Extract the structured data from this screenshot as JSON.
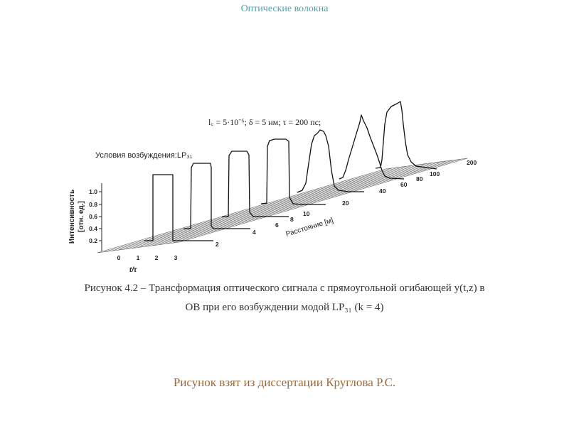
{
  "slide": {
    "title": "Оптические волокна",
    "credit": "Рисунок взят из диссертации Круглова Р.С."
  },
  "figure": {
    "params": "l꜀ = 5·10⁻⁶;  δ = 5 нм; τ = 200 пс;",
    "excitation_label": "Условия возбуждения:LP₃₁",
    "y_axis_label_line1": "Интенсивность",
    "y_axis_label_line2": "[отн. ед.]",
    "y_ticks": [
      "1.0",
      "0.8",
      "0.6",
      "0.4",
      "0.2"
    ],
    "t_axis_label": "t/τ",
    "t_ticks": [
      "0",
      "1",
      "2",
      "3"
    ],
    "distance_axis_label": "Расстояние [м]",
    "distance_ticks": [
      "2",
      "4",
      "6",
      "8",
      "10",
      "20",
      "40",
      "60",
      "80",
      "100",
      "200"
    ],
    "caption_line1": "Рисунок 4.2 – Трансформация оптического сигнала с прямоугольной огибающей y(t,z) в",
    "caption_line2": "ОВ при его возбуждении модой LP₃₁ (k = 4)"
  }
}
